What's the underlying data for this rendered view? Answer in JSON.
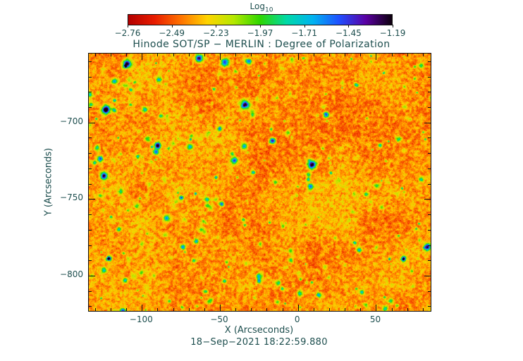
{
  "chart_data": {
    "type": "heatmap",
    "title": "Hinode SOT/SP − MERLIN : Degree of Polarization",
    "xlabel": "X (Arcseconds)",
    "ylabel": "Y (Arcseconds)",
    "timestamp": "18−Sep−2021 18:22:59.880",
    "xlim": [
      -134,
      85
    ],
    "ylim": [
      -823,
      -655
    ],
    "x_major_ticks": [
      -100,
      -50,
      0,
      50
    ],
    "y_major_ticks": [
      -800,
      -750,
      -700
    ],
    "minor_tick_step": 10,
    "colorbar": {
      "label_base": "Log",
      "label_sub": "10",
      "range": [
        -2.76,
        -1.19
      ],
      "tick_labels": [
        "−2.76",
        "−2.49",
        "−2.23",
        "−1.97",
        "−1.71",
        "−1.45",
        "−1.19"
      ]
    },
    "colormap": [
      "#b30000",
      "#e81c00",
      "#ff7300",
      "#ffd400",
      "#b5e800",
      "#2ed600",
      "#00d9a6",
      "#00b3f0",
      "#1f4fff",
      "#5a00a3",
      "#0d000d"
    ],
    "value_stats": "background granulation mostly log10 DoP -2.7 to -2.2 (red/orange/yellow speckle); scattered magnetic patches reach -1.9 to -1.2 (green/cyan/blue/black blobs)",
    "noise": {
      "seed": 1337,
      "base": 0.06,
      "w_large": 0.09,
      "w_small": 0.16,
      "w_jitter": 0.11,
      "scale_large": 40,
      "scale_small": 3,
      "blob_count": 300,
      "blob_amp_min": 0.12,
      "blob_amp_max": 0.55,
      "blob_r_min": 1.2,
      "blob_r_max": 5,
      "strong_blob_count": 16,
      "strong_amp_min": 0.55,
      "strong_amp_max": 0.95,
      "strong_r_min": 3,
      "strong_r_max": 8
    }
  }
}
